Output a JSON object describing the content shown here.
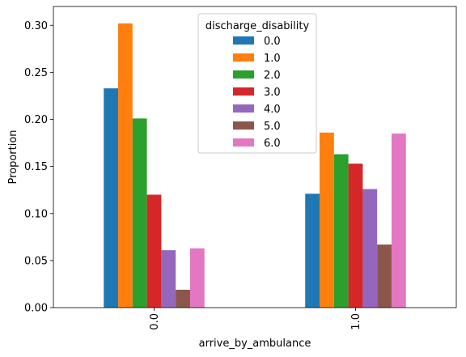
{
  "chart_data": {
    "type": "bar",
    "xlabel": "arrive_by_ambulance",
    "ylabel": "Proportion",
    "categories": [
      "0.0",
      "1.0"
    ],
    "ylim": [
      0,
      0.32
    ],
    "yticks": [
      "0.00",
      "0.05",
      "0.10",
      "0.15",
      "0.20",
      "0.25",
      "0.30"
    ],
    "legend": {
      "title": "discharge_disability",
      "placement": "top-center"
    },
    "grid": false,
    "series": [
      {
        "name": "0.0",
        "color": "#1f77b4",
        "values": [
          0.233,
          0.121
        ]
      },
      {
        "name": "1.0",
        "color": "#ff7f0e",
        "values": [
          0.302,
          0.186
        ]
      },
      {
        "name": "2.0",
        "color": "#2ca02c",
        "values": [
          0.201,
          0.163
        ]
      },
      {
        "name": "3.0",
        "color": "#d62728",
        "values": [
          0.12,
          0.153
        ]
      },
      {
        "name": "4.0",
        "color": "#9467bd",
        "values": [
          0.061,
          0.126
        ]
      },
      {
        "name": "5.0",
        "color": "#8c564b",
        "values": [
          0.019,
          0.067
        ]
      },
      {
        "name": "6.0",
        "color": "#e377c2",
        "values": [
          0.063,
          0.185
        ]
      }
    ]
  }
}
